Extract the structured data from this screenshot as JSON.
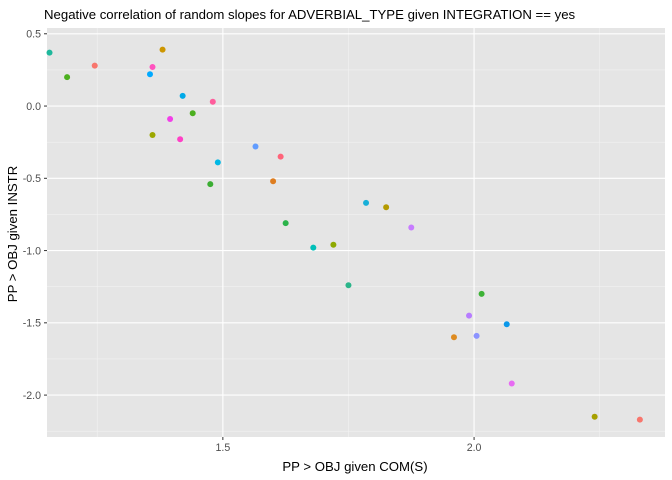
{
  "chart_data": {
    "type": "scatter",
    "title": "Negative correlation of random slopes for ADVERBIAL_TYPE given INTEGRATION == yes",
    "xlabel": "PP > OBJ given COM(S)",
    "ylabel": "PP > OBJ given INSTR",
    "xlim": [
      1.15,
      2.38
    ],
    "ylim": [
      -2.29,
      0.54
    ],
    "x_ticks": [
      1.5,
      2.0
    ],
    "x_tick_labels": [
      "1.5",
      "2.0"
    ],
    "y_ticks": [
      0.5,
      0.0,
      -0.5,
      -1.0,
      -1.5,
      -2.0
    ],
    "y_tick_labels": [
      "0.5",
      "0.0",
      "-0.5",
      "-1.0",
      "-1.5",
      "-2.0"
    ],
    "grid": true,
    "legend": "none",
    "points": [
      {
        "x": 1.155,
        "y": 0.37,
        "color": "#1FB89C"
      },
      {
        "x": 1.19,
        "y": 0.2,
        "color": "#4CB01F"
      },
      {
        "x": 1.245,
        "y": 0.28,
        "color": "#F8766D"
      },
      {
        "x": 1.355,
        "y": 0.22,
        "color": "#00A9FF"
      },
      {
        "x": 1.36,
        "y": 0.27,
        "color": "#FF52BE"
      },
      {
        "x": 1.38,
        "y": 0.39,
        "color": "#CD9600"
      },
      {
        "x": 1.42,
        "y": 0.07,
        "color": "#00A9E8"
      },
      {
        "x": 1.48,
        "y": 0.03,
        "color": "#FF5D9C"
      },
      {
        "x": 1.44,
        "y": -0.05,
        "color": "#4CAF1F"
      },
      {
        "x": 1.395,
        "y": -0.09,
        "color": "#F23FE8"
      },
      {
        "x": 1.36,
        "y": -0.2,
        "color": "#9CA700"
      },
      {
        "x": 1.415,
        "y": -0.23,
        "color": "#FF40C6"
      },
      {
        "x": 1.49,
        "y": -0.39,
        "color": "#00B8E5"
      },
      {
        "x": 1.475,
        "y": -0.54,
        "color": "#3BAD32"
      },
      {
        "x": 1.565,
        "y": -0.28,
        "color": "#619CFF"
      },
      {
        "x": 1.615,
        "y": -0.35,
        "color": "#FF647A"
      },
      {
        "x": 1.6,
        "y": -0.52,
        "color": "#DE7D20"
      },
      {
        "x": 1.625,
        "y": -0.81,
        "color": "#2BB34A"
      },
      {
        "x": 1.68,
        "y": -0.98,
        "color": "#00BFB8"
      },
      {
        "x": 1.72,
        "y": -0.96,
        "color": "#8EA900"
      },
      {
        "x": 1.75,
        "y": -1.24,
        "color": "#2BB58A"
      },
      {
        "x": 1.785,
        "y": -0.67,
        "color": "#18AFD8"
      },
      {
        "x": 1.825,
        "y": -0.7,
        "color": "#B49A00"
      },
      {
        "x": 1.875,
        "y": -0.84,
        "color": "#C77CFF"
      },
      {
        "x": 1.96,
        "y": -1.6,
        "color": "#DE8B20"
      },
      {
        "x": 1.99,
        "y": -1.45,
        "color": "#B77CFF"
      },
      {
        "x": 2.005,
        "y": -1.59,
        "color": "#8B93FF"
      },
      {
        "x": 2.015,
        "y": -1.3,
        "color": "#3DB236"
      },
      {
        "x": 2.065,
        "y": -1.51,
        "color": "#0B98EA"
      },
      {
        "x": 2.075,
        "y": -1.92,
        "color": "#E76BF3"
      },
      {
        "x": 2.24,
        "y": -2.15,
        "color": "#A7A000"
      },
      {
        "x": 2.33,
        "y": -2.17,
        "color": "#F8766D"
      }
    ]
  },
  "colors": {
    "panel_background": "#E5E5E5",
    "grid_major": "#FFFFFF",
    "grid_minor": "#F2F2F2",
    "tick_text": "#4D4D4D",
    "tick_mark": "#333333"
  }
}
